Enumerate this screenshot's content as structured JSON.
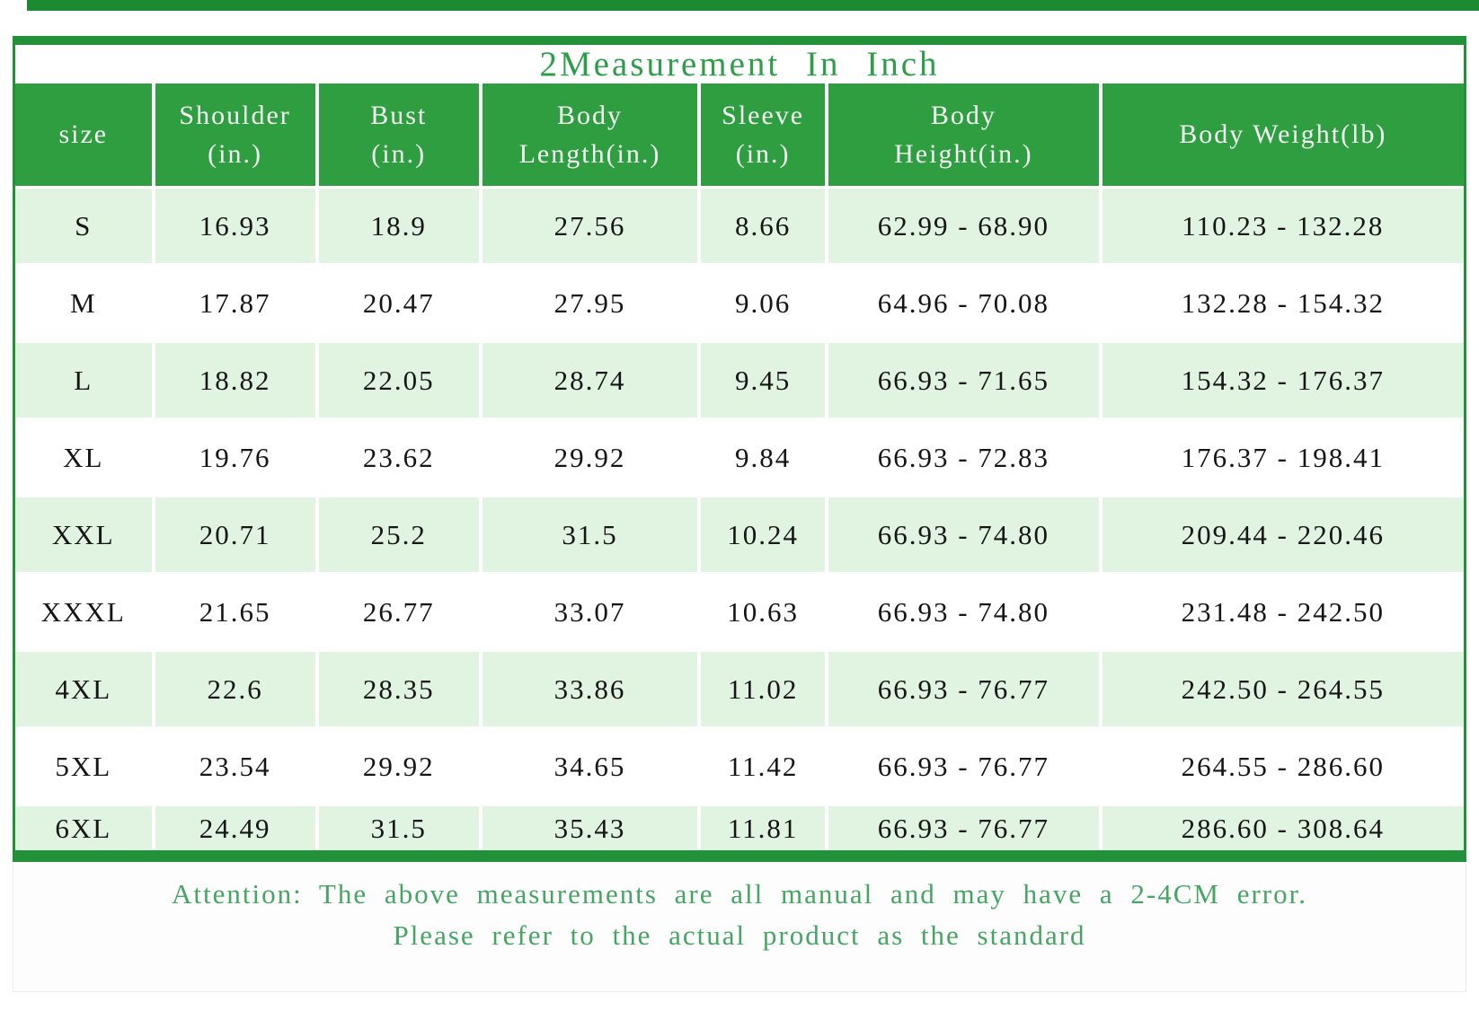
{
  "title": "2Measurement In Inch",
  "table": {
    "columns": [
      "size",
      "Shoulder\n(in.)",
      "Bust\n(in.)",
      "Body\nLength(in.)",
      "Sleeve\n(in.)",
      "Body\nHeight(in.)",
      "Body Weight(lb)"
    ],
    "rows": [
      {
        "size": "S",
        "values": [
          "16.93",
          "18.9",
          "27.56",
          "8.66",
          "62.99 - 68.90",
          "110.23 - 132.28"
        ]
      },
      {
        "size": "M",
        "values": [
          "17.87",
          "20.47",
          "27.95",
          "9.06",
          "64.96 - 70.08",
          "132.28 - 154.32"
        ]
      },
      {
        "size": "L",
        "values": [
          "18.82",
          "22.05",
          "28.74",
          "9.45",
          "66.93 - 71.65",
          "154.32 - 176.37"
        ]
      },
      {
        "size": "XL",
        "values": [
          "19.76",
          "23.62",
          "29.92",
          "9.84",
          "66.93 - 72.83",
          "176.37 - 198.41"
        ]
      },
      {
        "size": "XXL",
        "values": [
          "20.71",
          "25.2",
          "31.5",
          "10.24",
          "66.93 - 74.80",
          "209.44 - 220.46"
        ]
      },
      {
        "size": "XXXL",
        "values": [
          "21.65",
          "26.77",
          "33.07",
          "10.63",
          "66.93 - 74.80",
          "231.48 - 242.50"
        ]
      },
      {
        "size": "4XL",
        "values": [
          "22.6",
          "28.35",
          "33.86",
          "11.02",
          "66.93 - 76.77",
          "242.50 - 264.55"
        ]
      },
      {
        "size": "5XL",
        "values": [
          "23.54",
          "29.92",
          "34.65",
          "11.42",
          "66.93 - 76.77",
          "264.55 - 286.60"
        ]
      },
      {
        "size": "6XL",
        "values": [
          "24.49",
          "31.5",
          "35.43",
          "11.81",
          "66.93 - 76.77",
          "286.60 - 308.64"
        ]
      }
    ]
  },
  "footer": {
    "line1": "Attention: The above measurements are all manual and may have a 2-4CM error.",
    "line2": "Please refer to the actual product as the standard"
  },
  "colors": {
    "header_green": "#2f9e41",
    "border_green": "#23913a",
    "top_bar_green": "#1b8a31",
    "row_light_green": "#e1f3e1",
    "title_green": "#2e9e4b",
    "note_green": "#46a563",
    "header_text": "#f4fbf4",
    "data_text": "#151515"
  }
}
